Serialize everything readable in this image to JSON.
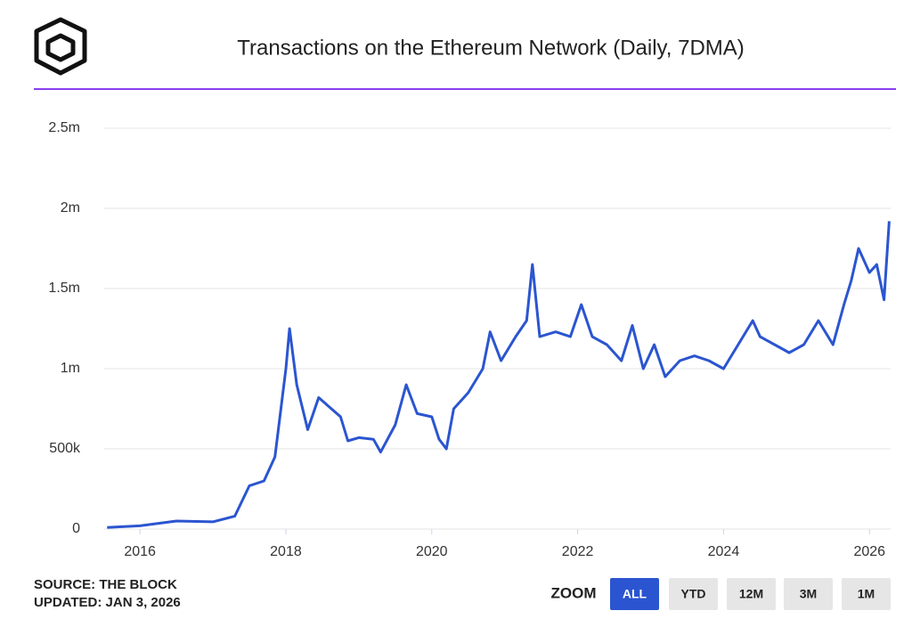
{
  "chart_data": {
    "type": "line",
    "title": "Transactions on the Ethereum Network (Daily, 7DMA)",
    "x": [
      2015.55,
      2016.0,
      2016.5,
      2017.0,
      2017.3,
      2017.5,
      2017.7,
      2017.85,
      2018.0,
      2018.05,
      2018.15,
      2018.3,
      2018.45,
      2018.6,
      2018.75,
      2018.85,
      2019.0,
      2019.2,
      2019.3,
      2019.5,
      2019.65,
      2019.8,
      2020.0,
      2020.1,
      2020.2,
      2020.3,
      2020.5,
      2020.7,
      2020.8,
      2020.95,
      2021.15,
      2021.3,
      2021.38,
      2021.48,
      2021.7,
      2021.9,
      2022.05,
      2022.2,
      2022.4,
      2022.6,
      2022.75,
      2022.9,
      2023.05,
      2023.2,
      2023.4,
      2023.6,
      2023.8,
      2024.0,
      2024.2,
      2024.4,
      2024.5,
      2024.7,
      2024.9,
      2025.1,
      2025.3,
      2025.5,
      2025.65,
      2025.75,
      2025.85,
      2026.0,
      2026.1,
      2026.2,
      2026.27
    ],
    "values": [
      10000,
      20000,
      50000,
      45000,
      80000,
      270000,
      300000,
      450000,
      1000000,
      1250000,
      900000,
      620000,
      820000,
      760000,
      700000,
      550000,
      570000,
      560000,
      480000,
      650000,
      900000,
      720000,
      700000,
      560000,
      500000,
      750000,
      850000,
      1000000,
      1230000,
      1050000,
      1200000,
      1300000,
      1650000,
      1200000,
      1230000,
      1200000,
      1400000,
      1200000,
      1150000,
      1050000,
      1270000,
      1000000,
      1150000,
      950000,
      1050000,
      1080000,
      1050000,
      1000000,
      1150000,
      1300000,
      1200000,
      1150000,
      1100000,
      1150000,
      1300000,
      1150000,
      1400000,
      1550000,
      1750000,
      1600000,
      1650000,
      1430000,
      1920000
    ],
    "color": "#2b55d0",
    "xlim": [
      2015.51,
      2026.29
    ],
    "xticks": [
      2016,
      2018,
      2020,
      2022,
      2024,
      2026
    ],
    "ylim": [
      0,
      2500000
    ],
    "yticks": [
      {
        "value": 0,
        "label": "0"
      },
      {
        "value": 500000,
        "label": "500k"
      },
      {
        "value": 1000000,
        "label": "1m"
      },
      {
        "value": 1500000,
        "label": "1.5m"
      },
      {
        "value": 2000000,
        "label": "2m"
      },
      {
        "value": 2500000,
        "label": "2.5m"
      }
    ],
    "grid": true,
    "source": "SOURCE: THE BLOCK",
    "updated": "UPDATED: JAN 3, 2026"
  },
  "zoom": {
    "label": "ZOOM",
    "buttons": [
      "ALL",
      "YTD",
      "12M",
      "3M",
      "1M"
    ],
    "active": 0
  }
}
